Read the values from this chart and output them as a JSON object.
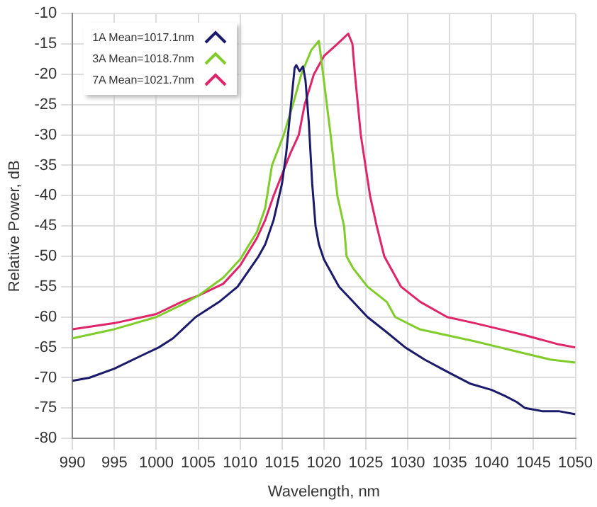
{
  "chart_data": {
    "type": "line",
    "xlabel": "Wavelength, nm",
    "ylabel": "Relative Power, dB",
    "xlim": [
      990,
      1050
    ],
    "ylim": [
      -80,
      -10
    ],
    "xticks": [
      990,
      995,
      1000,
      1005,
      1010,
      1015,
      1020,
      1025,
      1030,
      1035,
      1040,
      1045,
      1050
    ],
    "yticks": [
      -80,
      -75,
      -70,
      -65,
      -60,
      -55,
      -50,
      -45,
      -40,
      -35,
      -30,
      -25,
      -20,
      -15,
      -10
    ],
    "grid": true,
    "legend": "top left",
    "marker": "none",
    "line_style": "solid",
    "series": [
      {
        "name": "1A Mean=1017.1nm",
        "color": "#1c1a6b",
        "x": [
          990,
          992,
          995,
          998,
          1000.3,
          1002,
          1004.7,
          1007.5,
          1009.7,
          1012.2,
          1013,
          1014,
          1015,
          1015.5,
          1016,
          1016.5,
          1016.7,
          1017.1,
          1017.5,
          1017.8,
          1018.2,
          1018.6,
          1019,
          1019.4,
          1020,
          1021.8,
          1023.5,
          1025.2,
          1027.5,
          1029.7,
          1032,
          1034.7,
          1037.5,
          1040,
          1041.6,
          1043,
          1044,
          1046,
          1048,
          1050
        ],
        "values": [
          -70.5,
          -70,
          -68.5,
          -66.5,
          -65,
          -63.5,
          -60,
          -57.5,
          -55,
          -50,
          -48,
          -44,
          -38,
          -33,
          -26,
          -19,
          -18.5,
          -19.5,
          -18.7,
          -21,
          -28,
          -38,
          -45,
          -48,
          -50.5,
          -55,
          -57.5,
          -60,
          -62.5,
          -65,
          -67,
          -69,
          -71,
          -72,
          -73,
          -74,
          -75,
          -75.5,
          -75.5,
          -76
        ]
      },
      {
        "name": "3A Mean=1018.7nm",
        "color": "#7fcc2a",
        "x": [
          990,
          995,
          1000,
          1003,
          1005,
          1008,
          1010,
          1012,
          1013,
          1013.8,
          1015.2,
          1016.3,
          1017.3,
          1018.5,
          1019.4,
          1019.9,
          1020.8,
          1021.6,
          1022.4,
          1022.7,
          1023.5,
          1025.2,
          1027.5,
          1028.5,
          1031.4,
          1034.7,
          1038,
          1041,
          1044,
          1047,
          1050
        ],
        "values": [
          -63.5,
          -62,
          -60,
          -58,
          -56.5,
          -53.5,
          -50.5,
          -46,
          -42,
          -35,
          -30,
          -25,
          -20,
          -16,
          -14.5,
          -20,
          -30,
          -40,
          -45,
          -50,
          -52,
          -55,
          -57.5,
          -60,
          -62,
          -63,
          -64,
          -65,
          -66,
          -67,
          -67.5
        ]
      },
      {
        "name": "7A Mean=1021.7nm",
        "color": "#e0246a",
        "x": [
          990,
          995,
          1000,
          1003,
          1005,
          1008,
          1010,
          1012,
          1013,
          1014,
          1016,
          1017,
          1017.7,
          1018.8,
          1020,
          1021.6,
          1022.9,
          1023.4,
          1023.7,
          1024.4,
          1025.5,
          1026.3,
          1027.2,
          1029.2,
          1031.5,
          1034.7,
          1038,
          1041,
          1044,
          1048,
          1050
        ],
        "values": [
          -62,
          -61,
          -59.5,
          -57.5,
          -56.5,
          -54.5,
          -51.5,
          -47,
          -44,
          -40,
          -33,
          -30,
          -25,
          -20,
          -17,
          -15,
          -13.3,
          -15,
          -20,
          -30,
          -40,
          -45,
          -50,
          -55,
          -57.5,
          -60,
          -61,
          -62,
          -63,
          -64.5,
          -65
        ]
      }
    ]
  }
}
